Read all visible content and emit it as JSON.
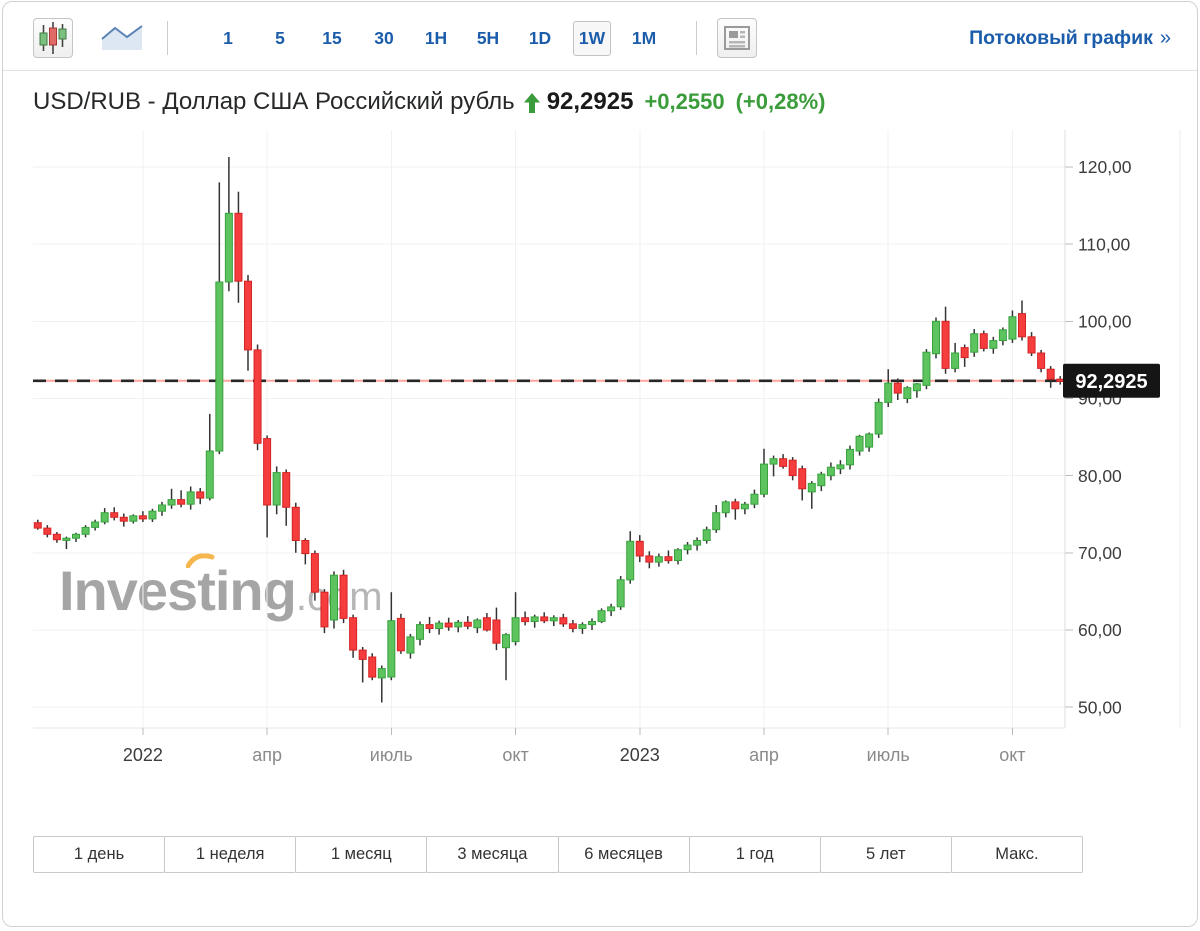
{
  "toolbar": {
    "chart_type_buttons": [
      {
        "key": "candlestick",
        "selected": true
      },
      {
        "key": "line",
        "selected": false
      }
    ],
    "intervals": [
      {
        "key": "1",
        "label": "1",
        "selected": false
      },
      {
        "key": "5",
        "label": "5",
        "selected": false
      },
      {
        "key": "15",
        "label": "15",
        "selected": false
      },
      {
        "key": "30",
        "label": "30",
        "selected": false
      },
      {
        "key": "1h",
        "label": "1H",
        "selected": false
      },
      {
        "key": "5h",
        "label": "5H",
        "selected": false
      },
      {
        "key": "1d",
        "label": "1D",
        "selected": false
      },
      {
        "key": "1w",
        "label": "1W",
        "selected": true
      },
      {
        "key": "1m",
        "label": "1M",
        "selected": false
      }
    ],
    "stream_link": {
      "label": "Потоковый график",
      "arrow": "»"
    }
  },
  "header": {
    "title": "USD/RUB - Доллар США Российский рубль",
    "direction": "up",
    "price": "92,2925",
    "change": "+0,2550",
    "change_percent": "(+0,28%)"
  },
  "watermark": {
    "brand": "Investing",
    "suffix": ".com"
  },
  "range_buttons": [
    {
      "key": "1d",
      "label": "1 день"
    },
    {
      "key": "1w",
      "label": "1 неделя"
    },
    {
      "key": "1m",
      "label": "1 месяц"
    },
    {
      "key": "3m",
      "label": "3 месяца"
    },
    {
      "key": "6m",
      "label": "6 месяцев"
    },
    {
      "key": "1y",
      "label": "1 год"
    },
    {
      "key": "5y",
      "label": "5 лет"
    },
    {
      "key": "max",
      "label": "Макс."
    }
  ],
  "colors": {
    "up": "#5cc35e",
    "up_border": "#39a23d",
    "down": "#f53d3d",
    "down_border": "#d32424",
    "wick": "#333333",
    "grid": "#f1f1f1",
    "axis": "#dddddd",
    "tick": "#bbbbbb",
    "edge": "#ececec",
    "price_line_underlay": "#ffa49e",
    "price_line_dash": "#262626",
    "tag_bg": "#151515",
    "tag_text": "#ffffff",
    "label_dark": "#3c3c3c",
    "label_light": "#8a8a8a",
    "accent_blue": "#1b5dab",
    "green_text": "#3b9c3b",
    "watermark_accent": "#f5a623"
  },
  "chart_data": {
    "type": "candlestick",
    "pair": "USD/RUB",
    "interval": "weekly",
    "ylim": [
      47.5,
      124.5
    ],
    "grid": true,
    "y_axis": {
      "ticks": [
        {
          "label": "120,00",
          "value": 120
        },
        {
          "label": "110,00",
          "value": 110
        },
        {
          "label": "100,00",
          "value": 100
        },
        {
          "label": "90,00",
          "value": 90
        },
        {
          "label": "80,00",
          "value": 80
        },
        {
          "label": "70,00",
          "value": 70
        },
        {
          "label": "60,00",
          "value": 60
        },
        {
          "label": "50,00",
          "value": 50
        }
      ]
    },
    "x_axis": {
      "labels": [
        {
          "label": "2022",
          "index": 11,
          "year": true
        },
        {
          "label": "апр",
          "index": 24,
          "year": false
        },
        {
          "label": "июль",
          "index": 37,
          "year": false
        },
        {
          "label": "окт",
          "index": 50,
          "year": false
        },
        {
          "label": "2023",
          "index": 63,
          "year": true
        },
        {
          "label": "апр",
          "index": 76,
          "year": false
        },
        {
          "label": "июль",
          "index": 89,
          "year": false
        },
        {
          "label": "окт",
          "index": 102,
          "year": false
        }
      ]
    },
    "price_line": {
      "value": 92.2925,
      "label": "92,2925"
    },
    "candles": [
      [
        73.9,
        74.3,
        73.0,
        73.2
      ],
      [
        73.2,
        73.6,
        72.0,
        72.4
      ],
      [
        72.4,
        72.7,
        71.3,
        71.7
      ],
      [
        71.7,
        72.1,
        70.5,
        71.9
      ],
      [
        71.9,
        72.6,
        71.4,
        72.4
      ],
      [
        72.4,
        73.6,
        72.0,
        73.3
      ],
      [
        73.3,
        74.3,
        72.9,
        74.0
      ],
      [
        74.0,
        75.8,
        73.7,
        75.2
      ],
      [
        75.2,
        75.9,
        74.2,
        74.6
      ],
      [
        74.6,
        75.1,
        73.4,
        74.1
      ],
      [
        74.1,
        75.0,
        73.8,
        74.8
      ],
      [
        74.8,
        75.4,
        74.0,
        74.4
      ],
      [
        74.4,
        75.7,
        74.0,
        75.4
      ],
      [
        75.4,
        76.6,
        74.8,
        76.2
      ],
      [
        76.2,
        78.3,
        75.7,
        76.9
      ],
      [
        76.9,
        78.1,
        75.9,
        76.3
      ],
      [
        76.3,
        78.6,
        75.6,
        77.9
      ],
      [
        77.9,
        78.4,
        76.3,
        77.1
      ],
      [
        77.1,
        88.0,
        76.8,
        83.2
      ],
      [
        83.2,
        118.0,
        82.8,
        105.1
      ],
      [
        105.1,
        121.3,
        103.9,
        114.0
      ],
      [
        114.0,
        116.8,
        102.4,
        105.2
      ],
      [
        105.2,
        106.0,
        93.6,
        96.3
      ],
      [
        96.3,
        97.0,
        83.3,
        84.2
      ],
      [
        84.8,
        85.2,
        72.0,
        76.2
      ],
      [
        76.2,
        81.2,
        75.0,
        80.4
      ],
      [
        80.4,
        80.8,
        73.5,
        75.9
      ],
      [
        75.9,
        76.5,
        70.0,
        71.6
      ],
      [
        71.6,
        71.9,
        68.5,
        69.9
      ],
      [
        69.9,
        70.3,
        63.8,
        64.9
      ],
      [
        64.9,
        65.3,
        59.6,
        60.4
      ],
      [
        61.3,
        67.6,
        60.2,
        67.1
      ],
      [
        67.1,
        67.8,
        60.9,
        61.5
      ],
      [
        61.6,
        62.0,
        56.4,
        57.4
      ],
      [
        57.4,
        57.8,
        53.2,
        56.2
      ],
      [
        56.5,
        57.0,
        53.5,
        53.9
      ],
      [
        53.8,
        55.4,
        50.6,
        55.0
      ],
      [
        53.9,
        64.9,
        53.5,
        61.2
      ],
      [
        61.5,
        62.1,
        56.9,
        57.3
      ],
      [
        57.0,
        59.5,
        56.3,
        59.1
      ],
      [
        58.8,
        61.1,
        58.0,
        60.7
      ],
      [
        60.7,
        61.7,
        59.6,
        60.2
      ],
      [
        60.2,
        61.2,
        59.4,
        60.9
      ],
      [
        60.9,
        61.6,
        59.9,
        60.4
      ],
      [
        60.4,
        61.3,
        59.7,
        61.0
      ],
      [
        61.0,
        61.8,
        60.1,
        60.5
      ],
      [
        60.3,
        61.5,
        59.6,
        61.3
      ],
      [
        61.6,
        62.2,
        59.8,
        60.0
      ],
      [
        61.3,
        62.9,
        57.4,
        58.3
      ],
      [
        57.7,
        59.6,
        53.5,
        59.4
      ],
      [
        58.5,
        64.9,
        58.0,
        61.6
      ],
      [
        61.6,
        62.4,
        60.6,
        61.1
      ],
      [
        61.1,
        62.0,
        60.3,
        61.7
      ],
      [
        61.7,
        62.3,
        60.9,
        61.2
      ],
      [
        61.2,
        61.9,
        60.5,
        61.6
      ],
      [
        61.6,
        62.1,
        60.4,
        60.8
      ],
      [
        60.8,
        61.3,
        59.7,
        60.2
      ],
      [
        60.2,
        61.0,
        59.5,
        60.7
      ],
      [
        60.7,
        61.5,
        60.0,
        61.1
      ],
      [
        61.1,
        62.8,
        60.9,
        62.5
      ],
      [
        62.5,
        63.4,
        61.8,
        63.0
      ],
      [
        63.0,
        67.0,
        62.6,
        66.5
      ],
      [
        66.5,
        72.8,
        66.0,
        71.5
      ],
      [
        71.5,
        72.3,
        68.8,
        69.6
      ],
      [
        69.6,
        70.2,
        68.0,
        68.8
      ],
      [
        68.8,
        69.9,
        68.2,
        69.5
      ],
      [
        69.5,
        70.3,
        68.6,
        69.0
      ],
      [
        69.0,
        70.6,
        68.5,
        70.4
      ],
      [
        70.4,
        71.4,
        69.8,
        71.0
      ],
      [
        71.0,
        72.0,
        70.3,
        71.6
      ],
      [
        71.6,
        73.4,
        71.2,
        73.0
      ],
      [
        73.0,
        76.2,
        72.6,
        75.2
      ],
      [
        75.2,
        76.8,
        74.6,
        76.6
      ],
      [
        76.6,
        77.0,
        74.3,
        75.7
      ],
      [
        75.7,
        76.6,
        75.0,
        76.3
      ],
      [
        76.3,
        78.2,
        75.8,
        77.6
      ],
      [
        77.6,
        83.5,
        77.2,
        81.5
      ],
      [
        81.5,
        82.6,
        79.9,
        82.2
      ],
      [
        82.2,
        82.8,
        80.9,
        81.2
      ],
      [
        82.0,
        82.4,
        79.4,
        80.0
      ],
      [
        80.9,
        81.3,
        76.8,
        78.3
      ],
      [
        77.9,
        79.3,
        75.7,
        79.0
      ],
      [
        78.7,
        80.5,
        78.0,
        80.2
      ],
      [
        80.0,
        81.7,
        79.4,
        81.1
      ],
      [
        80.9,
        82.0,
        80.2,
        81.4
      ],
      [
        81.4,
        83.9,
        80.8,
        83.4
      ],
      [
        83.2,
        85.3,
        82.6,
        85.1
      ],
      [
        83.7,
        85.6,
        83.1,
        85.4
      ],
      [
        85.4,
        90.0,
        84.9,
        89.5
      ],
      [
        89.5,
        93.8,
        88.9,
        92.0
      ],
      [
        92.0,
        92.6,
        89.8,
        90.7
      ],
      [
        90.0,
        91.6,
        89.4,
        91.4
      ],
      [
        91.0,
        92.0,
        90.1,
        91.9
      ],
      [
        91.7,
        96.4,
        91.2,
        96.0
      ],
      [
        95.8,
        100.5,
        95.2,
        100.0
      ],
      [
        100.0,
        101.9,
        93.2,
        93.9
      ],
      [
        93.9,
        97.2,
        93.4,
        95.9
      ],
      [
        96.6,
        97.0,
        94.1,
        95.3
      ],
      [
        96.0,
        99.0,
        95.4,
        98.4
      ],
      [
        98.4,
        98.8,
        96.1,
        96.5
      ],
      [
        96.5,
        98.0,
        95.8,
        97.5
      ],
      [
        97.5,
        99.2,
        96.9,
        98.9
      ],
      [
        97.7,
        101.4,
        97.2,
        100.6
      ],
      [
        101.0,
        102.7,
        97.5,
        98.0
      ],
      [
        98.0,
        98.6,
        95.5,
        95.9
      ],
      [
        95.9,
        96.3,
        93.4,
        93.9
      ],
      [
        93.8,
        94.2,
        91.4,
        92.5
      ],
      [
        92.5,
        92.9,
        91.8,
        92.3
      ]
    ]
  }
}
